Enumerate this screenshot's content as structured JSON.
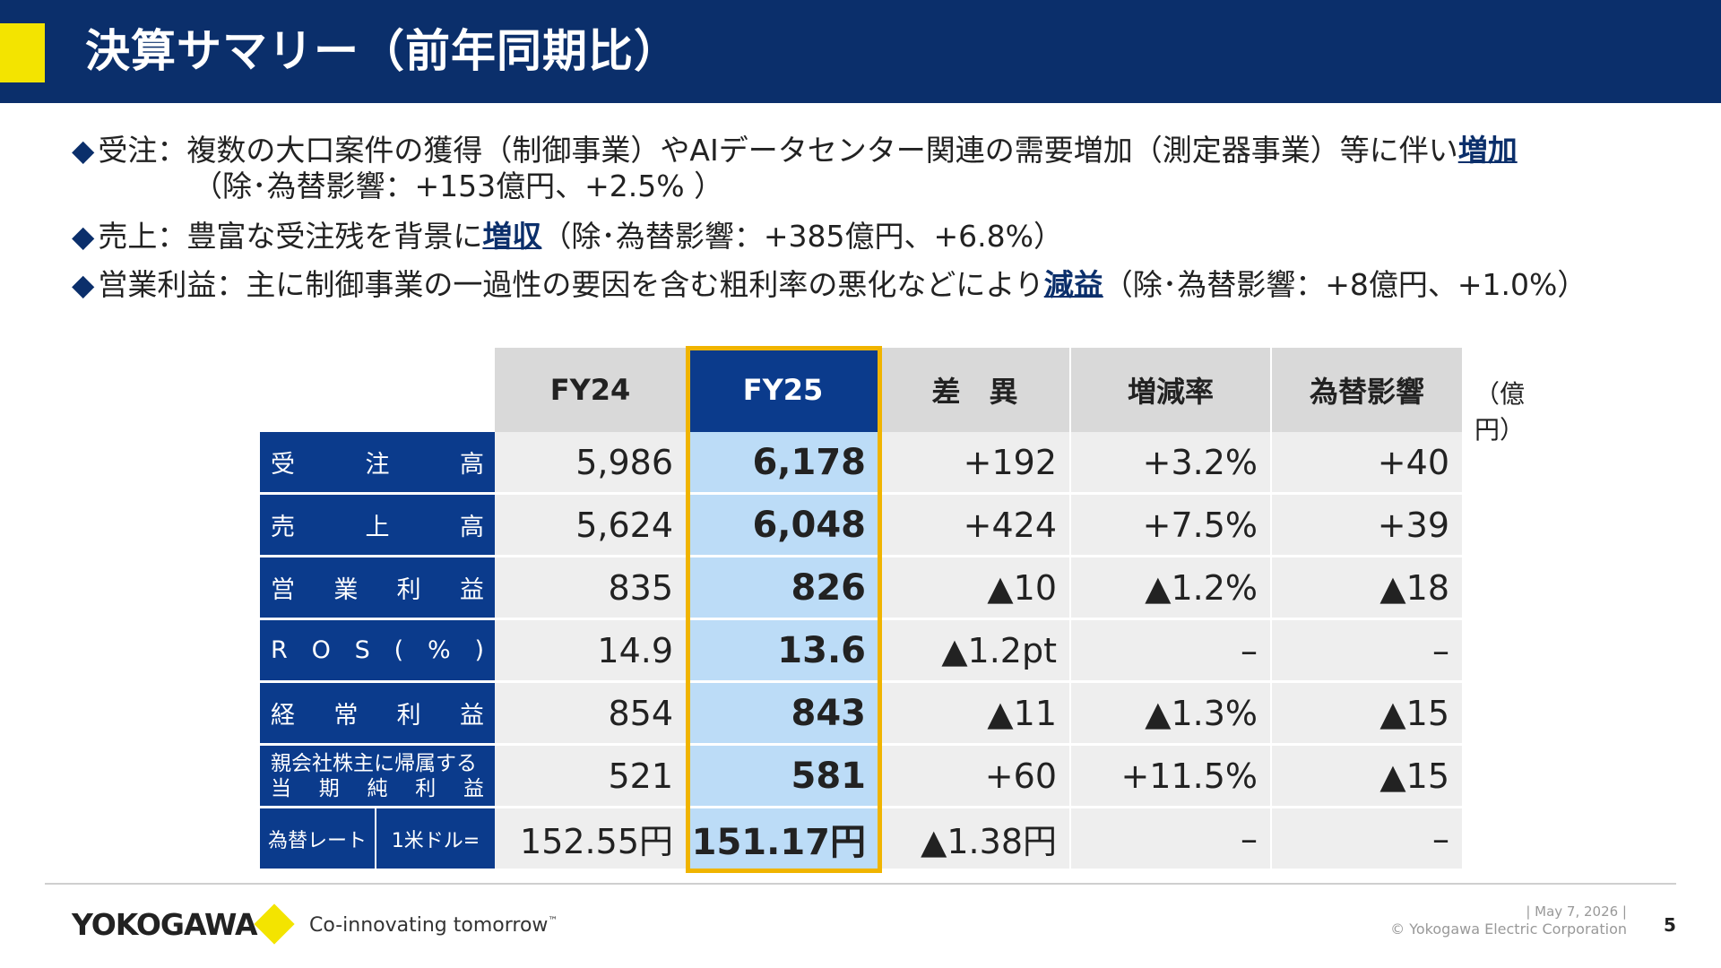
{
  "header": {
    "title": "決算サマリー（前年同期比）"
  },
  "bullets": [
    {
      "mark": "◆",
      "pre": "受注：複数の大口案件の獲得（制御事業）やAIデータセンター関連の需要増加（測定器事業）等に伴い",
      "emphasis": "増加",
      "post": "",
      "sub": "（除･為替影響：+153億円、+2.5% ）"
    },
    {
      "mark": "◆",
      "pre": "売上：豊富な受注残を背景に",
      "emphasis": "増収",
      "post": "（除･為替影響：+385億円、+6.8%）"
    },
    {
      "mark": "◆",
      "pre": "営業利益：主に制御事業の一過性の要因を含む粗利率の悪化などにより",
      "emphasis": "減益",
      "post": "（除･為替影響：+8億円、+1.0%）"
    }
  ],
  "table": {
    "unit": "（億円）",
    "headers": [
      "FY24",
      "FY25",
      "差　異",
      "増減率",
      "為替影響"
    ],
    "rows": [
      {
        "label": [
          "受",
          "注",
          "高"
        ],
        "values": [
          "5,986",
          "6,178",
          "+192",
          "+3.2%",
          "+40"
        ]
      },
      {
        "label": [
          "売",
          "上",
          "高"
        ],
        "values": [
          "5,624",
          "6,048",
          "+424",
          "+7.5%",
          "+39"
        ]
      },
      {
        "label": [
          "営",
          "業",
          "利",
          "益"
        ],
        "values": [
          "835",
          "826",
          "▲10",
          "▲1.2%",
          "▲18"
        ]
      },
      {
        "label": [
          "R",
          "O",
          "S",
          "(",
          "%",
          ")"
        ],
        "values": [
          "14.9",
          "13.6",
          "▲1.2pt",
          "–",
          "–"
        ]
      },
      {
        "label": [
          "経",
          "常",
          "利",
          "益"
        ],
        "values": [
          "854",
          "843",
          "▲11",
          "▲1.3%",
          "▲15"
        ]
      },
      {
        "label_line1": "親会社株主に帰属する",
        "label_line2": [
          "当",
          "期",
          "純",
          "利",
          "益"
        ],
        "values": [
          "521",
          "581",
          "+60",
          "+11.5%",
          "▲15"
        ]
      }
    ],
    "fx_row": {
      "label_a": "為替レート",
      "label_b": "1米ドル=",
      "values": [
        "152.55円",
        "151.17円",
        "▲1.38円",
        "–",
        "–"
      ]
    }
  },
  "footer": {
    "logo": "YOKOGAWA",
    "tagline": "Co-innovating tomorrow",
    "tagline_tm": "™",
    "date": "| May 7, 2026 |",
    "copyright": "© Yokogawa Electric Corporation",
    "page": "5"
  }
}
